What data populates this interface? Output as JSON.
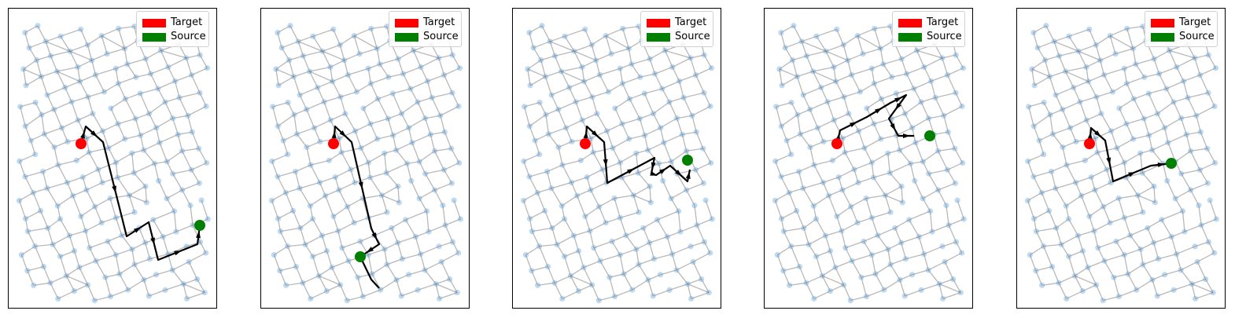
{
  "colors": {
    "target": "#ff0000",
    "source": "#008000",
    "node": "#5b9bd5",
    "edge": "#000000",
    "path": "#000000"
  },
  "legend": {
    "target_label": "Target",
    "source_label": "Source"
  },
  "panels": [
    {
      "id": 1
    },
    {
      "id": 2
    },
    {
      "id": 3
    },
    {
      "id": 4
    },
    {
      "id": 5
    }
  ]
}
